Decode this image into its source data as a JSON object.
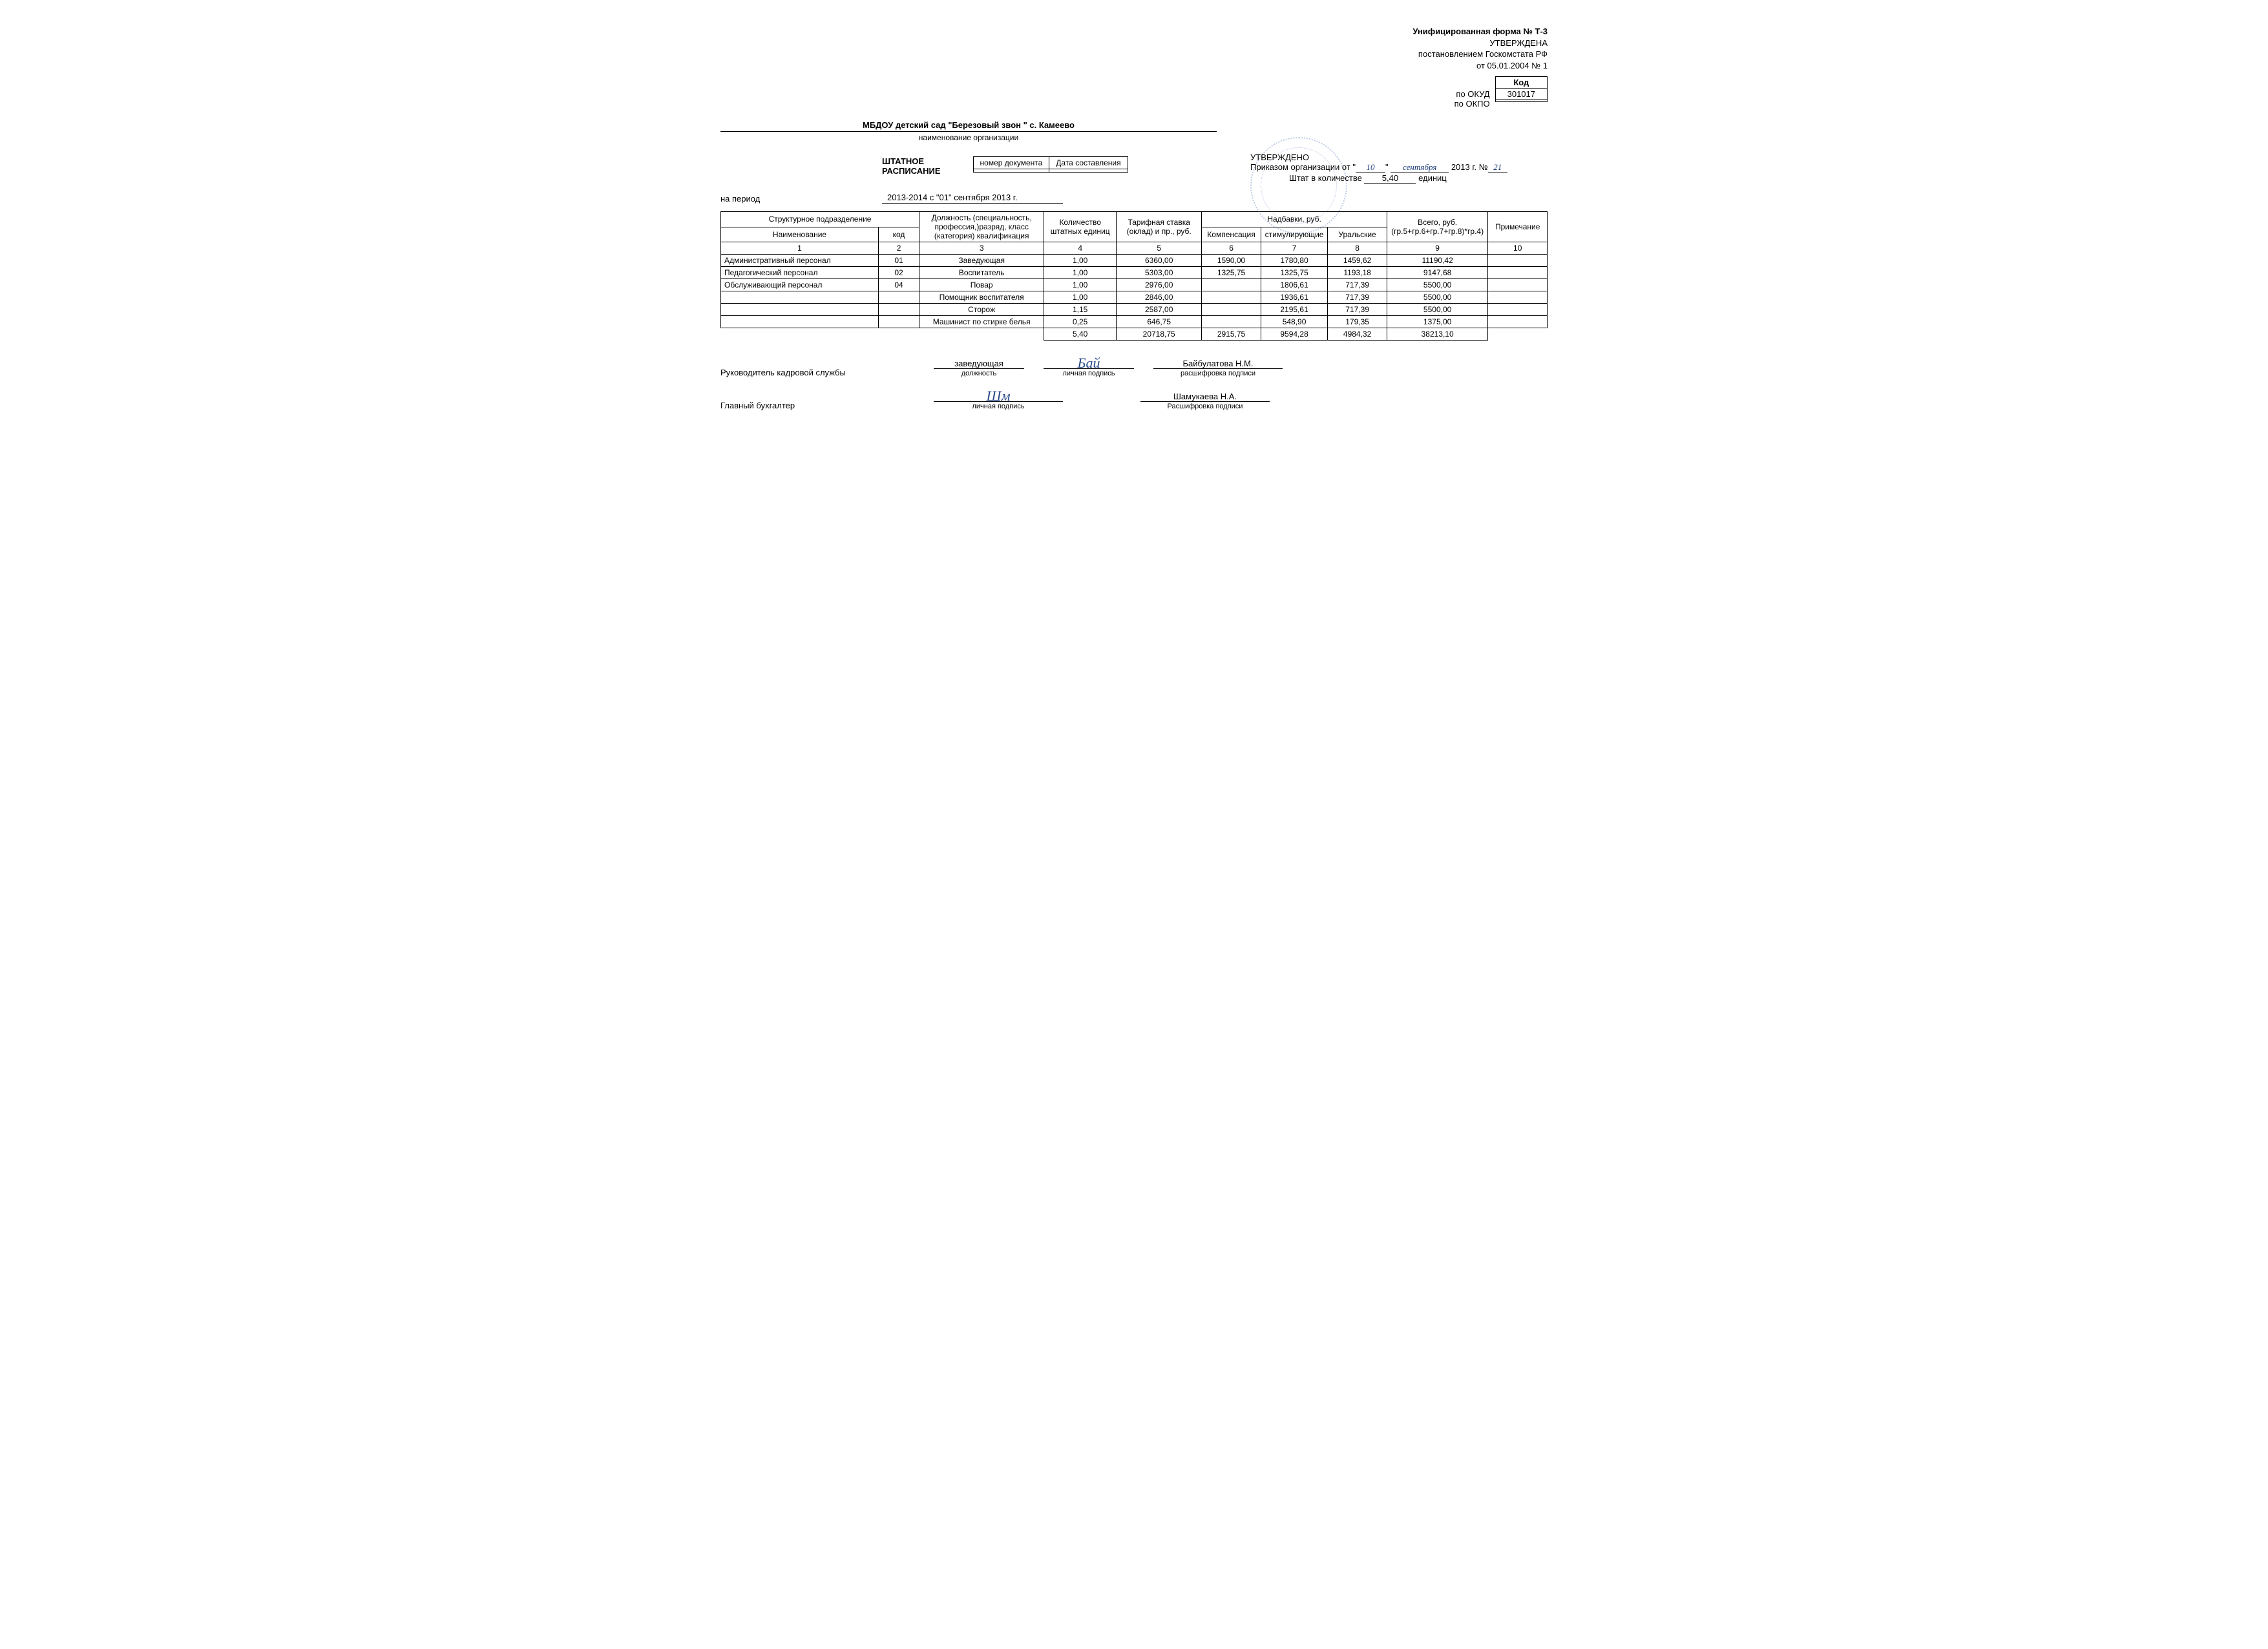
{
  "form": {
    "title": "Унифицированная форма № Т-3",
    "approved": "УТВЕРЖДЕНА",
    "decree": "постановлением Госкомстата РФ",
    "decree_date": "от 05.01.2004 № 1",
    "code_header": "Код",
    "okud_label": "по ОКУД",
    "okud_value": "301017",
    "okpo_label": "по ОКПО",
    "okpo_value": ""
  },
  "org": {
    "name": "МБДОУ детский сад  \"Березовый звон \" с. Камеево",
    "caption": "наименование организации"
  },
  "doc": {
    "title": "ШТАТНОЕ РАСПИСАНИЕ",
    "num_header": "номер документа",
    "date_header": "Дата составления",
    "num_value": "",
    "date_value": ""
  },
  "period": {
    "label": "на период",
    "value": "2013-2014  с \"01\" сентября 2013 г."
  },
  "approve": {
    "l1": "УТВЕРЖДЕНО",
    "l2_prefix": "Приказом организации от \"",
    "day": "10",
    "l2_mid": "\" ",
    "month": "сентября",
    "l2_suffix": " 2013 г.   №",
    "order_no": "21",
    "l3_prefix": "Штат в количестве",
    "qty": "5,40",
    "l3_suffix": "единиц"
  },
  "table": {
    "h_struct": "Структурное подразделение",
    "h_name": "Наименование",
    "h_code": "код",
    "h_job": "Должность (специальность, профессия,)разряд, класс (категория) квалификация",
    "h_qty": "Количество штатных единиц",
    "h_rate": "Тарифная ставка (оклад) и пр., руб.",
    "h_allow": "Надбавки, руб.",
    "h_comp": "Компенсация",
    "h_stim": "стимулирующие",
    "h_ural": "Уральские",
    "h_total": "Всего, руб. (гр.5+гр.6+гр.7+гр.8)*гр.4)",
    "h_note": "Примечание",
    "colnums": [
      "1",
      "2",
      "3",
      "4",
      "5",
      "6",
      "7",
      "8",
      "9",
      "10"
    ],
    "rows": [
      {
        "name": "Административный персонал",
        "code": "01",
        "job": "Заведующая",
        "qty": "1,00",
        "rate": "6360,00",
        "comp": "1590,00",
        "stim": "1780,80",
        "ural": "1459,62",
        "total": "11190,42",
        "note": ""
      },
      {
        "name": "Педагогический персонал",
        "code": "02",
        "job": "Воспитатель",
        "qty": "1,00",
        "rate": "5303,00",
        "comp": "1325,75",
        "stim": "1325,75",
        "ural": "1193,18",
        "total": "9147,68",
        "note": ""
      },
      {
        "name": "Обслуживающий персонал",
        "code": "04",
        "job": "Повар",
        "qty": "1,00",
        "rate": "2976,00",
        "comp": "",
        "stim": "1806,61",
        "ural": "717,39",
        "total": "5500,00",
        "note": ""
      },
      {
        "name": "",
        "code": "",
        "job": "Помощник воспитателя",
        "qty": "1,00",
        "rate": "2846,00",
        "comp": "",
        "stim": "1936,61",
        "ural": "717,39",
        "total": "5500,00",
        "note": ""
      },
      {
        "name": "",
        "code": "",
        "job": "Сторож",
        "qty": "1,15",
        "rate": "2587,00",
        "comp": "",
        "stim": "2195,61",
        "ural": "717,39",
        "total": "5500,00",
        "note": ""
      },
      {
        "name": "",
        "code": "",
        "job": "Машинист по стирке белья",
        "qty": "0,25",
        "rate": "646,75",
        "comp": "",
        "stim": "548,90",
        "ural": "179,35",
        "total": "1375,00",
        "note": ""
      }
    ],
    "totals": {
      "qty": "5,40",
      "rate": "20718,75",
      "comp": "2915,75",
      "stim": "9594,28",
      "ural": "4984,32",
      "total": "38213,10"
    }
  },
  "sign": {
    "hr_role": "Руководитель кадровой службы",
    "hr_position": "заведующая",
    "hr_pos_cap": "должность",
    "hr_sig_cap": "личная подпись",
    "hr_name": "Байбулатова Н.М.",
    "hr_name_cap": "расшифровка подписи",
    "acc_role": "Главный бухгалтер",
    "acc_sig_cap": "личная подпись",
    "acc_name": "Шамукаева Н.А.",
    "acc_name_cap": "Расшифровка подписи"
  },
  "style": {
    "font_family": "Arial, sans-serif",
    "base_font_size_pt": 10,
    "table_font_size_pt": 9,
    "text_color": "#000000",
    "background_color": "#ffffff",
    "border_color": "#000000",
    "handwriting_color": "#1a3a7a",
    "stamp_color": "#4a6ab8",
    "stamp_opacity": 0.35
  }
}
